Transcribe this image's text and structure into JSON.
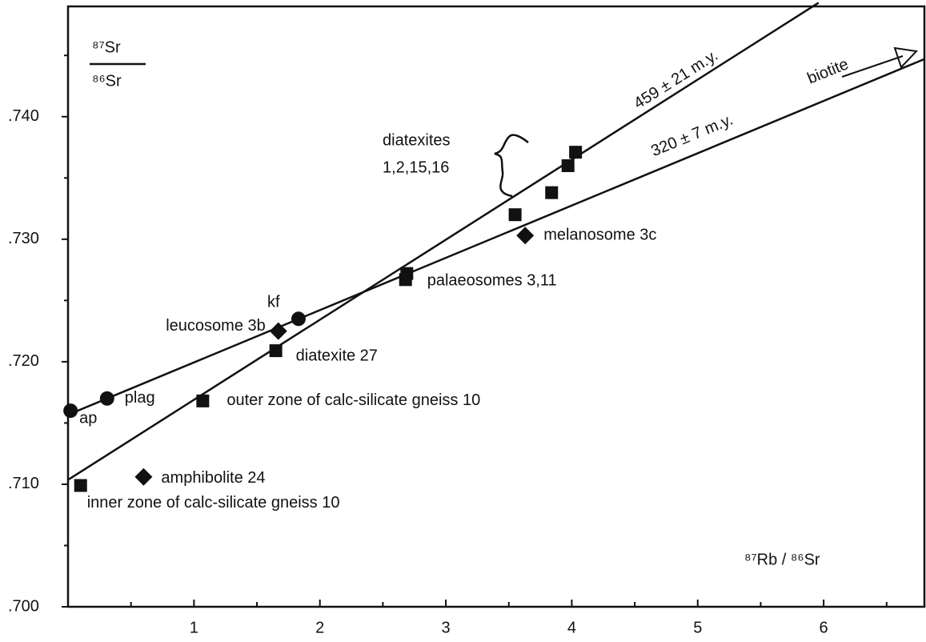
{
  "chart_data": {
    "type": "scatter",
    "y_label_numerator": "⁸⁷Sr",
    "y_label_denominator": "⁸⁶Sr",
    "x_label": "⁸⁷Rb / ⁸⁶Sr",
    "xlim": [
      0,
      6.8
    ],
    "ylim": [
      0.7,
      0.749
    ],
    "xticks": [
      1,
      2,
      3,
      4,
      5,
      6
    ],
    "xticks_minor": [
      0.5,
      1.5,
      2.5,
      3.5,
      4.5,
      5.5,
      6.5
    ],
    "yticks": [
      {
        "value": 0.7,
        "label": ".700"
      },
      {
        "value": 0.71,
        "label": ".710"
      },
      {
        "value": 0.72,
        "label": ".720"
      },
      {
        "value": 0.73,
        "label": ".730"
      },
      {
        "value": 0.74,
        "label": ".740"
      }
    ],
    "yticks_minor": [
      0.705,
      0.715,
      0.725,
      0.735,
      0.745
    ],
    "color": "#111111",
    "series": [
      {
        "marker": "circle",
        "x": [
          0.02,
          0.31,
          1.83
        ],
        "values": [
          0.716,
          0.717,
          0.7235
        ],
        "labels": [
          "ap",
          "plag",
          "kf"
        ]
      },
      {
        "marker": "diamond",
        "x": [
          1.67,
          0.6,
          3.63
        ],
        "values": [
          0.7225,
          0.7106,
          0.7303
        ],
        "labels": [
          "leucosome 3b",
          "amphibolite 24",
          "melanosome 3c"
        ]
      },
      {
        "marker": "square",
        "x": [
          0.1,
          1.07,
          1.65,
          2.68,
          2.69,
          3.55,
          3.84,
          3.97,
          4.03
        ],
        "values": [
          0.7099,
          0.7168,
          0.7209,
          0.7267,
          0.7272,
          0.732,
          0.7338,
          0.736,
          0.7371
        ],
        "labels": [
          "inner zone of calc-silicate gneiss 10",
          "outer zone of calc-silicate gneiss 10",
          "diatexite 27",
          "palaeosomes 3,11",
          null,
          null,
          null,
          null,
          null
        ]
      }
    ],
    "lines": [
      {
        "label": "459 ± 21 m.y.",
        "x": [
          0.006,
          5.96
        ],
        "y": [
          0.7104,
          0.7493
        ]
      },
      {
        "label": "320 ± 7 m.y.",
        "x": [
          0.006,
          6.8
        ],
        "y": [
          0.7157,
          0.7447
        ]
      }
    ],
    "annotations": [
      "diatexites",
      "1,2,15,16",
      "biotite"
    ]
  }
}
